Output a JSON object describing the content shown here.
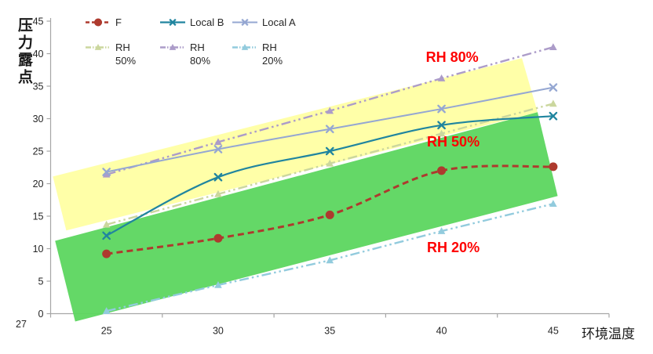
{
  "chart_data": {
    "type": "line",
    "title": "",
    "x_axis": {
      "label": "环境温度",
      "ticks": [
        25,
        30,
        35,
        40,
        45
      ],
      "range": [
        22.5,
        47.5
      ]
    },
    "y_axis": {
      "label": "压力露点",
      "ticks": [
        0,
        5,
        10,
        15,
        20,
        25,
        30,
        35,
        40,
        45
      ],
      "range": [
        0,
        45
      ]
    },
    "origin_label": "27",
    "x": [
      25,
      30,
      35,
      40,
      45
    ],
    "series": [
      {
        "name": "F",
        "legend_lines": [
          "F"
        ],
        "color": "#ae3a2e",
        "line_style": "dashed",
        "marker": "circle",
        "smooth": true,
        "width": 3,
        "values": [
          9.2,
          11.6,
          15.2,
          22.0,
          22.6
        ]
      },
      {
        "name": "Local B",
        "legend_lines": [
          "Local B"
        ],
        "color": "#20859f",
        "line_style": "solid",
        "marker": "x",
        "smooth": true,
        "width": 2.2,
        "values": [
          12.0,
          21.0,
          25.0,
          29.0,
          30.4
        ]
      },
      {
        "name": "Local A",
        "legend_lines": [
          "Local A"
        ],
        "color": "#95a7d2",
        "line_style": "solid",
        "marker": "x",
        "smooth": true,
        "width": 2,
        "values": [
          21.8,
          25.3,
          28.4,
          31.5,
          34.8
        ]
      },
      {
        "name": "RH 50%",
        "legend_lines": [
          "RH",
          "50%"
        ],
        "color": "#cbd79e",
        "line_style": "dash-dot-dot",
        "marker": "triangle",
        "smooth": false,
        "width": 2.4,
        "values": [
          13.7,
          18.4,
          23.1,
          27.7,
          32.3
        ]
      },
      {
        "name": "RH 80%",
        "legend_lines": [
          "RH",
          "80%"
        ],
        "color": "#ac9cc9",
        "line_style": "dash-dot-dot",
        "marker": "triangle",
        "smooth": false,
        "width": 2.4,
        "values": [
          21.4,
          26.4,
          31.2,
          36.2,
          41.0
        ]
      },
      {
        "name": "RH 20%",
        "legend_lines": [
          "RH",
          "20%"
        ],
        "color": "#92cbdd",
        "line_style": "dash-dot-dot",
        "marker": "triangle",
        "smooth": false,
        "width": 2.4,
        "values": [
          0.4,
          4.4,
          8.2,
          12.7,
          16.9
        ]
      }
    ],
    "bands": [
      {
        "name": "band-yellow",
        "color": "#ffffa3",
        "opacity": 0.95,
        "points": [
          [
            22.6,
            21.1
          ],
          [
            43.6,
            39.3
          ],
          [
            44.3,
            31.0
          ],
          [
            23.2,
            12.8
          ]
        ]
      },
      {
        "name": "band-green",
        "color": "#5cd65f",
        "opacity": 0.95,
        "points": [
          [
            22.7,
            11.2
          ],
          [
            44.3,
            31.0
          ],
          [
            45.2,
            18.1
          ],
          [
            23.6,
            -1.2
          ]
        ]
      }
    ],
    "annotations": [
      {
        "text": "RH 80%",
        "color": "#fe0000",
        "t": 39.3,
        "v": 40.7
      },
      {
        "text": "RH 50%",
        "color": "#fe0000",
        "t": 39.35,
        "v": 27.65
      },
      {
        "text": "RH 20%",
        "color": "#fe0000",
        "t": 39.35,
        "v": 11.4
      }
    ],
    "axis_color": "#a6a6a6",
    "tick_text_color": "#262626",
    "legend_position": "top"
  }
}
